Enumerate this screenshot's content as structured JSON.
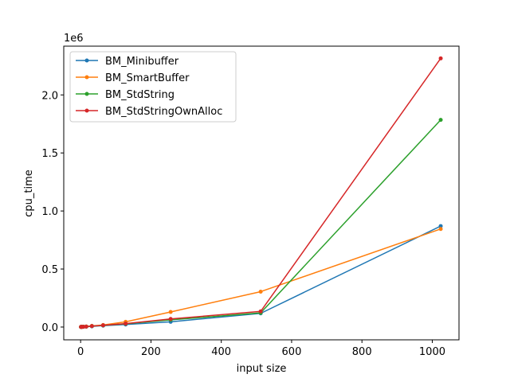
{
  "chart_data": {
    "type": "line",
    "xlabel": "input size",
    "ylabel": "cpu_time",
    "offset_text": "1e6",
    "xlim": [
      -48,
      1076
    ],
    "ylim": [
      -110000,
      2420000
    ],
    "x_ticks": [
      {
        "value": 0,
        "label": "0"
      },
      {
        "value": 200,
        "label": "200"
      },
      {
        "value": 400,
        "label": "400"
      },
      {
        "value": 600,
        "label": "600"
      },
      {
        "value": 800,
        "label": "800"
      },
      {
        "value": 1000,
        "label": "1000"
      }
    ],
    "y_ticks": [
      {
        "value": 0,
        "label": "0.0"
      },
      {
        "value": 500000,
        "label": "0.5"
      },
      {
        "value": 1000000,
        "label": "1.0"
      },
      {
        "value": 1500000,
        "label": "1.5"
      },
      {
        "value": 2000000,
        "label": "2.0"
      }
    ],
    "legend_position": "top-left",
    "grid": false,
    "x": [
      1,
      2,
      4,
      8,
      16,
      32,
      64,
      128,
      256,
      512,
      1024
    ],
    "series": [
      {
        "name": "BM_Minibuffer",
        "color": "#1f77b4",
        "values": [
          1000,
          1200,
          1500,
          2000,
          3500,
          6000,
          12000,
          22000,
          45000,
          118000,
          870000
        ]
      },
      {
        "name": "BM_SmartBuffer",
        "color": "#ff7f0e",
        "values": [
          1000,
          1300,
          1800,
          3000,
          5000,
          10000,
          18000,
          45000,
          130000,
          305000,
          845000
        ]
      },
      {
        "name": "BM_StdString",
        "color": "#2ca02c",
        "values": [
          1000,
          1300,
          1700,
          2500,
          4000,
          8000,
          14000,
          28000,
          62000,
          122000,
          1785000
        ]
      },
      {
        "name": "BM_StdStringOwnAlloc",
        "color": "#d62728",
        "values": [
          1000,
          1300,
          1700,
          2500,
          4000,
          8000,
          15000,
          30000,
          70000,
          135000,
          2315000
        ]
      }
    ]
  }
}
